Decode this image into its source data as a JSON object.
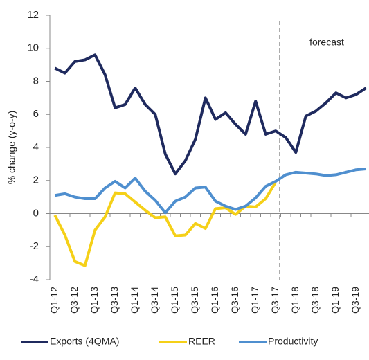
{
  "chart_data": {
    "type": "line",
    "y_axis_label": "% change (y-o-y)",
    "annotation": "forecast",
    "categories": [
      "Q1-12",
      null,
      "Q3-12",
      null,
      "Q1-13",
      null,
      "Q3-13",
      null,
      "Q1-14",
      null,
      "Q3-14",
      null,
      "Q1-15",
      null,
      "Q3-15",
      null,
      "Q1-16",
      null,
      "Q3-16",
      null,
      "Q1-17",
      null,
      "Q3-17",
      null,
      "Q1-18",
      null,
      "Q3-18",
      null,
      "Q1-19",
      null,
      "Q3-19",
      null
    ],
    "series": [
      {
        "name": "Exports (4QMA)",
        "color": "#1f2a5e",
        "values": [
          8.8,
          8.5,
          9.2,
          9.3,
          9.6,
          8.4,
          6.4,
          6.6,
          7.6,
          6.6,
          6.0,
          3.6,
          2.4,
          3.2,
          4.5,
          7.0,
          5.7,
          6.1,
          5.4,
          4.8,
          6.8,
          4.8,
          5.0,
          4.6,
          3.7,
          5.9,
          6.2,
          6.7,
          7.3,
          7.0,
          7.2,
          7.6
        ]
      },
      {
        "name": "REER",
        "color": "#f5d018",
        "values": [
          -0.1,
          -1.3,
          -2.9,
          -3.15,
          -1.0,
          -0.2,
          1.25,
          1.2,
          0.7,
          0.2,
          -0.25,
          -0.2,
          -1.35,
          -1.3,
          -0.6,
          -0.9,
          0.3,
          0.35,
          -0.05,
          0.45,
          0.4,
          0.9,
          1.9,
          null,
          null,
          null,
          null,
          null,
          null,
          null,
          null,
          null
        ]
      },
      {
        "name": "Productivity",
        "color": "#4f8fcf",
        "values": [
          1.1,
          1.2,
          1.0,
          0.9,
          0.9,
          1.55,
          1.95,
          1.55,
          2.15,
          1.35,
          0.8,
          0.05,
          0.75,
          1.0,
          1.55,
          1.6,
          0.75,
          0.45,
          0.25,
          0.45,
          0.95,
          1.65,
          1.95,
          2.35,
          2.5,
          2.45,
          2.4,
          2.3,
          2.35,
          2.5,
          2.65,
          2.7
        ]
      }
    ],
    "ylim": [
      -4,
      12
    ],
    "yticks": [
      -4,
      -2,
      0,
      2,
      4,
      6,
      8,
      10,
      12
    ],
    "grid": false
  }
}
